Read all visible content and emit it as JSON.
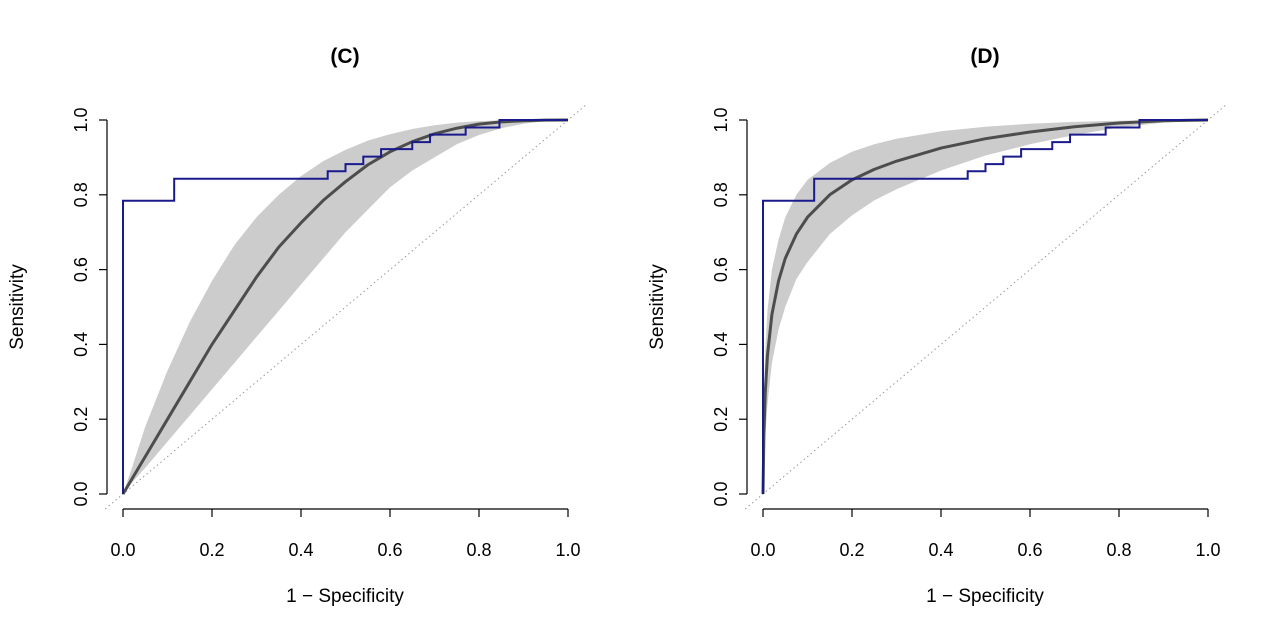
{
  "chart_data": [
    {
      "type": "line",
      "title": "(C)",
      "xlabel": "1 − Specificity",
      "ylabel": "Sensitivity",
      "xlim": [
        0,
        1
      ],
      "ylim": [
        0,
        1
      ],
      "xticks": [
        "0.0",
        "0.2",
        "0.4",
        "0.6",
        "0.8",
        "1.0"
      ],
      "yticks": [
        "0.0",
        "0.2",
        "0.4",
        "0.6",
        "0.8",
        "1.0"
      ],
      "colors": {
        "empirical": "#1a1a8c",
        "fitted": "#4d4d4d",
        "band": "#cccccc",
        "diagonal": "#999999"
      },
      "series": [
        {
          "name": "empirical ROC",
          "kind": "step",
          "x": [
            0,
            0,
            0.115,
            0.115,
            0.46,
            0.46,
            0.5,
            0.5,
            0.54,
            0.54,
            0.58,
            0.58,
            0.65,
            0.65,
            0.69,
            0.69,
            0.77,
            0.77,
            0.846,
            0.846,
            1.0
          ],
          "y": [
            0,
            0.784,
            0.784,
            0.843,
            0.843,
            0.863,
            0.863,
            0.882,
            0.882,
            0.902,
            0.902,
            0.922,
            0.922,
            0.941,
            0.941,
            0.961,
            0.961,
            0.98,
            0.98,
            1.0,
            1.0
          ]
        },
        {
          "name": "fitted ROC",
          "kind": "curve",
          "x": [
            0,
            0.02,
            0.05,
            0.1,
            0.15,
            0.2,
            0.25,
            0.3,
            0.35,
            0.4,
            0.45,
            0.5,
            0.55,
            0.6,
            0.65,
            0.7,
            0.75,
            0.8,
            0.85,
            0.9,
            0.95,
            1.0
          ],
          "y": [
            0,
            0.04,
            0.1,
            0.2,
            0.3,
            0.4,
            0.49,
            0.58,
            0.66,
            0.725,
            0.785,
            0.835,
            0.88,
            0.915,
            0.942,
            0.963,
            0.978,
            0.989,
            0.995,
            0.998,
            0.9995,
            1.0
          ]
        },
        {
          "name": "confidence band upper",
          "kind": "band_upper",
          "x": [
            0,
            0.02,
            0.05,
            0.1,
            0.15,
            0.2,
            0.25,
            0.3,
            0.35,
            0.4,
            0.45,
            0.5,
            0.55,
            0.6,
            0.65,
            0.7,
            0.75,
            0.8,
            0.85,
            0.9,
            0.95,
            1.0
          ],
          "y": [
            0,
            0.07,
            0.18,
            0.33,
            0.46,
            0.57,
            0.665,
            0.74,
            0.8,
            0.85,
            0.89,
            0.92,
            0.945,
            0.962,
            0.976,
            0.986,
            0.993,
            0.997,
            0.999,
            1.0,
            1.0,
            1.0
          ]
        },
        {
          "name": "confidence band lower",
          "kind": "band_lower",
          "x": [
            0,
            0.02,
            0.05,
            0.1,
            0.15,
            0.2,
            0.25,
            0.3,
            0.35,
            0.4,
            0.45,
            0.5,
            0.55,
            0.6,
            0.65,
            0.7,
            0.75,
            0.8,
            0.85,
            0.9,
            0.95,
            1.0
          ],
          "y": [
            0,
            0.03,
            0.07,
            0.14,
            0.21,
            0.28,
            0.35,
            0.42,
            0.49,
            0.56,
            0.63,
            0.7,
            0.76,
            0.82,
            0.865,
            0.9,
            0.935,
            0.96,
            0.978,
            0.99,
            0.997,
            1.0
          ]
        }
      ]
    },
    {
      "type": "line",
      "title": "(D)",
      "xlabel": "1 − Specificity",
      "ylabel": "Sensitivity",
      "xlim": [
        0,
        1
      ],
      "ylim": [
        0,
        1
      ],
      "xticks": [
        "0.0",
        "0.2",
        "0.4",
        "0.6",
        "0.8",
        "1.0"
      ],
      "yticks": [
        "0.0",
        "0.2",
        "0.4",
        "0.6",
        "0.8",
        "1.0"
      ],
      "colors": {
        "empirical": "#1a1a8c",
        "fitted": "#4d4d4d",
        "band": "#cccccc",
        "diagonal": "#999999"
      },
      "series": [
        {
          "name": "empirical ROC",
          "kind": "step",
          "x": [
            0,
            0,
            0.115,
            0.115,
            0.46,
            0.46,
            0.5,
            0.5,
            0.54,
            0.54,
            0.58,
            0.58,
            0.65,
            0.65,
            0.69,
            0.69,
            0.77,
            0.77,
            0.846,
            0.846,
            1.0
          ],
          "y": [
            0,
            0.784,
            0.784,
            0.843,
            0.843,
            0.863,
            0.863,
            0.882,
            0.882,
            0.902,
            0.902,
            0.922,
            0.922,
            0.941,
            0.941,
            0.961,
            0.961,
            0.98,
            0.98,
            1.0,
            1.0
          ]
        },
        {
          "name": "fitted ROC",
          "kind": "curve",
          "x": [
            0,
            0.002,
            0.005,
            0.01,
            0.02,
            0.035,
            0.05,
            0.075,
            0.1,
            0.15,
            0.2,
            0.25,
            0.3,
            0.4,
            0.5,
            0.6,
            0.7,
            0.8,
            0.9,
            1.0
          ],
          "y": [
            0,
            0.16,
            0.27,
            0.37,
            0.48,
            0.57,
            0.63,
            0.695,
            0.74,
            0.8,
            0.84,
            0.868,
            0.89,
            0.925,
            0.95,
            0.968,
            0.982,
            0.992,
            0.998,
            1.0
          ]
        },
        {
          "name": "confidence band upper",
          "kind": "band_upper",
          "x": [
            0,
            0.002,
            0.005,
            0.01,
            0.02,
            0.035,
            0.05,
            0.075,
            0.1,
            0.15,
            0.2,
            0.25,
            0.3,
            0.4,
            0.5,
            0.6,
            0.7,
            0.8,
            0.9,
            1.0
          ],
          "y": [
            0,
            0.26,
            0.38,
            0.49,
            0.6,
            0.68,
            0.74,
            0.8,
            0.84,
            0.885,
            0.915,
            0.935,
            0.95,
            0.97,
            0.982,
            0.99,
            0.995,
            0.998,
            1.0,
            1.0
          ]
        },
        {
          "name": "confidence band lower",
          "kind": "band_lower",
          "x": [
            0,
            0.002,
            0.005,
            0.01,
            0.02,
            0.035,
            0.05,
            0.075,
            0.1,
            0.15,
            0.2,
            0.25,
            0.3,
            0.4,
            0.5,
            0.6,
            0.7,
            0.8,
            0.9,
            1.0
          ],
          "y": [
            0,
            0.07,
            0.15,
            0.24,
            0.35,
            0.44,
            0.5,
            0.575,
            0.62,
            0.695,
            0.745,
            0.785,
            0.815,
            0.865,
            0.905,
            0.935,
            0.96,
            0.98,
            0.993,
            1.0
          ]
        }
      ]
    }
  ]
}
